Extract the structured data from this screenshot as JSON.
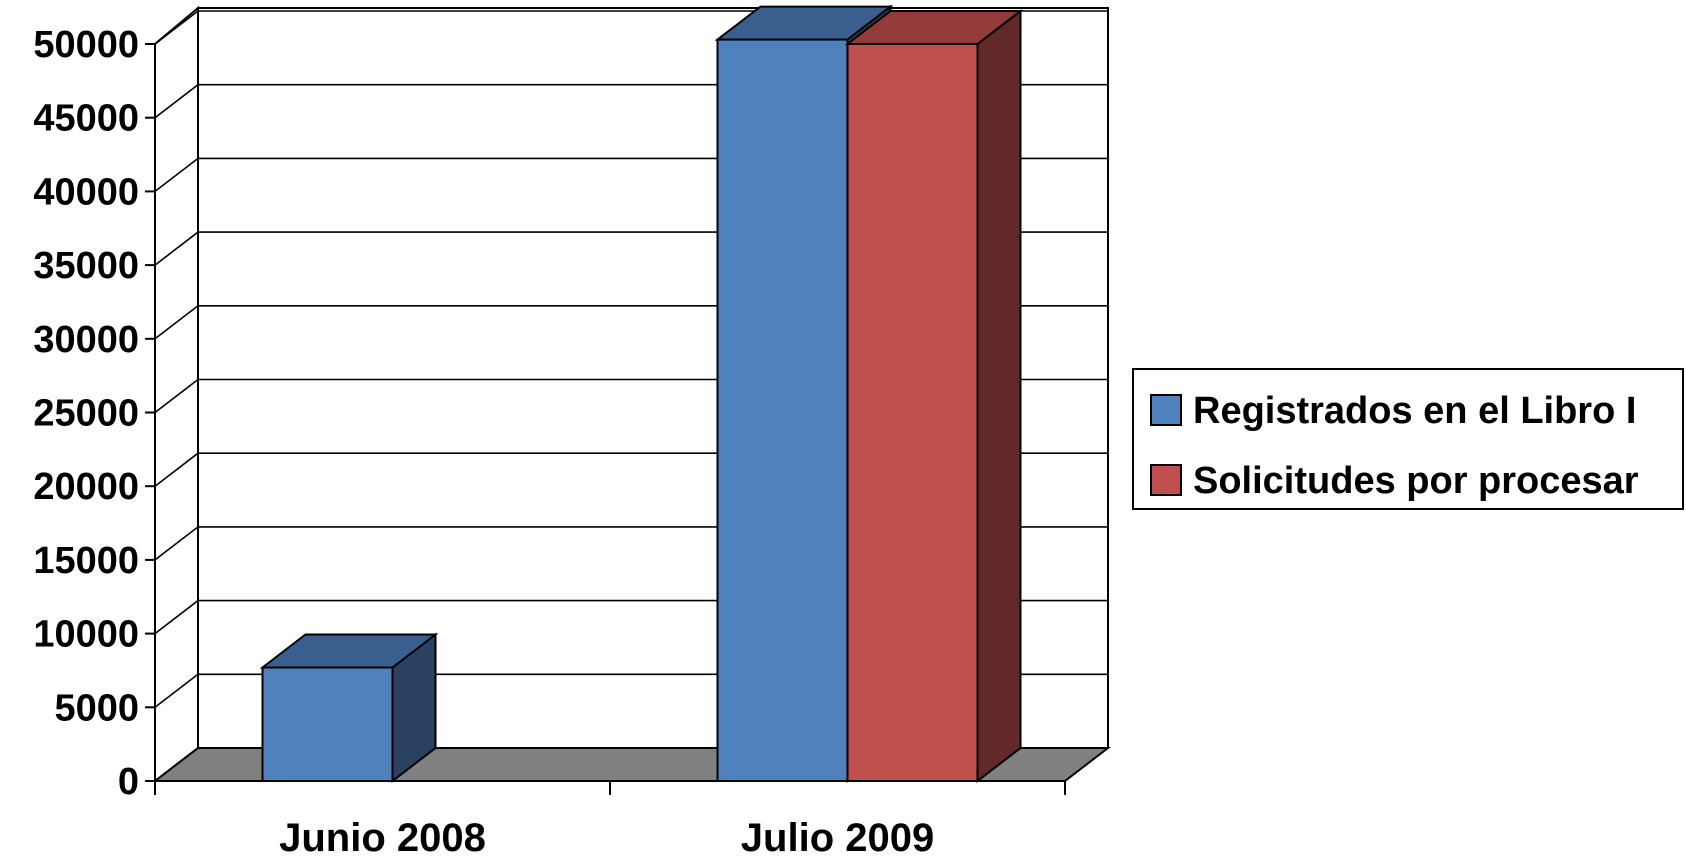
{
  "chart_data": {
    "type": "bar",
    "title": "",
    "xlabel": "",
    "ylabel": "",
    "categories": [
      "Junio 2008",
      "Julio 2009"
    ],
    "series": [
      {
        "name": "Registrados en el Libro I",
        "values": [
          7700,
          50300
        ],
        "color": "#4F81BD",
        "top_color": "#3A5F8E",
        "side_color": "#2A4161"
      },
      {
        "name": "Solicitudes por procesar",
        "values": [
          0,
          50000
        ],
        "color": "#C0504D",
        "top_color": "#923B39",
        "side_color": "#632828"
      }
    ],
    "ylim": [
      0,
      50000
    ],
    "yticks": [
      "0",
      "5000",
      "10000",
      "15000",
      "20000",
      "25000",
      "30000",
      "35000",
      "40000",
      "45000",
      "50000"
    ],
    "grid": true,
    "legend_position": "right",
    "style": "3d-column",
    "floor_color": "#808080"
  }
}
